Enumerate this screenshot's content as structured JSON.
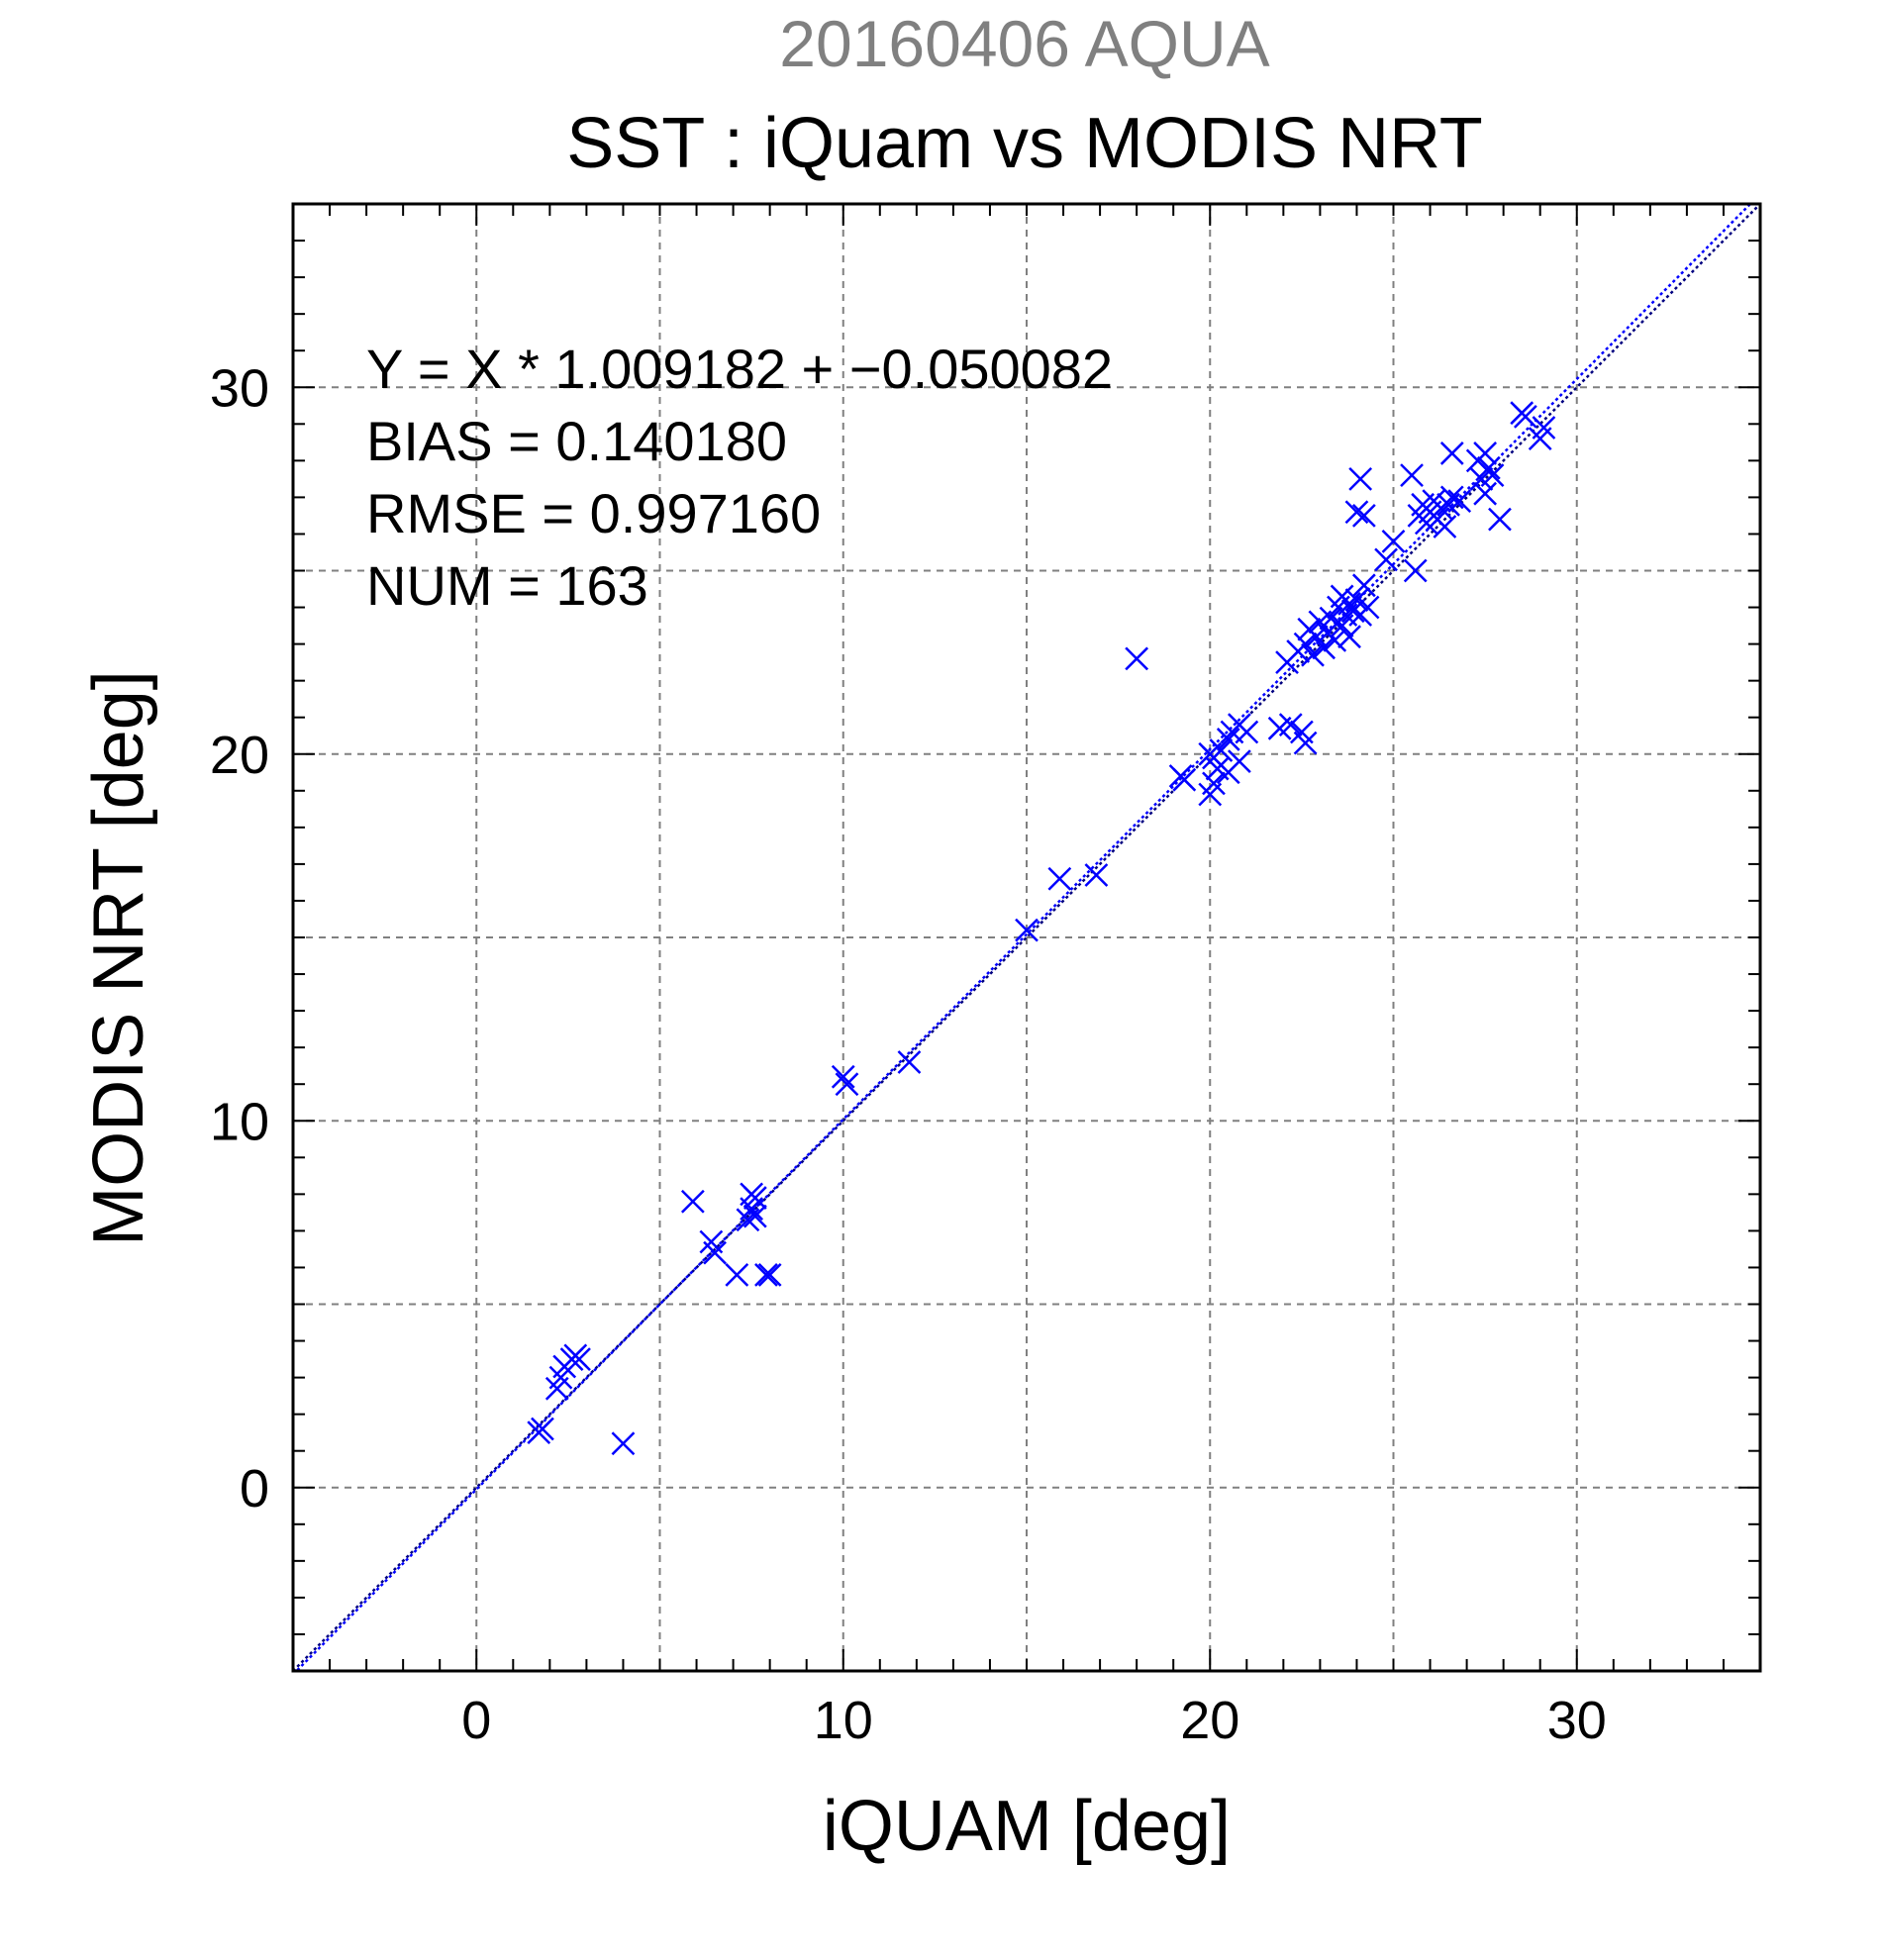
{
  "chart_data": {
    "type": "scatter",
    "title": "20160406 AQUA",
    "subtitle": "SST : iQuam vs MODIS NRT",
    "xlabel": "iQUAM [deg]",
    "ylabel": "MODIS NRT [deg]",
    "xlim": [
      -5,
      35
    ],
    "ylim": [
      -5,
      35
    ],
    "xticks": [
      0,
      10,
      20,
      30
    ],
    "yticks": [
      0,
      10,
      20,
      30
    ],
    "grid": true,
    "stats": {
      "equation": "Y = X * 1.009182 + −0.050082",
      "bias": "BIAS = 0.140180",
      "rmse": "RMSE = 0.997160",
      "num": "NUM = 163"
    },
    "fit": {
      "slope": 1.009182,
      "intercept": -0.050082
    },
    "colors": {
      "marker": "#0000ff",
      "fit_line": "#0000ff",
      "identity_line": "#000080",
      "grid": "#808080"
    },
    "series": [
      {
        "marker": "x",
        "points": [
          [
            1.7,
            1.5
          ],
          [
            1.8,
            1.6
          ],
          [
            2.2,
            2.7
          ],
          [
            2.3,
            3.0
          ],
          [
            2.4,
            3.3
          ],
          [
            2.6,
            3.5
          ],
          [
            2.8,
            3.5
          ],
          [
            2.7,
            3.6
          ],
          [
            4.0,
            1.2
          ],
          [
            5.9,
            7.8
          ],
          [
            6.4,
            6.7
          ],
          [
            6.5,
            6.4
          ],
          [
            7.1,
            5.8
          ],
          [
            7.4,
            7.3
          ],
          [
            7.5,
            7.6
          ],
          [
            7.6,
            7.4
          ],
          [
            7.5,
            8.0
          ],
          [
            7.6,
            7.9
          ],
          [
            7.9,
            5.8
          ],
          [
            8.0,
            5.8
          ],
          [
            10.0,
            11.2
          ],
          [
            10.1,
            11.0
          ],
          [
            11.8,
            11.6
          ],
          [
            15.0,
            15.2
          ],
          [
            15.9,
            16.6
          ],
          [
            16.9,
            16.7
          ],
          [
            18.0,
            22.6
          ],
          [
            19.2,
            19.4
          ],
          [
            19.3,
            19.3
          ],
          [
            20.0,
            18.9
          ],
          [
            20.1,
            19.2
          ],
          [
            20.0,
            20.0
          ],
          [
            20.1,
            19.9
          ],
          [
            20.2,
            19.6
          ],
          [
            20.3,
            20.1
          ],
          [
            20.5,
            19.5
          ],
          [
            20.5,
            20.4
          ],
          [
            20.6,
            20.6
          ],
          [
            20.8,
            19.8
          ],
          [
            20.8,
            20.8
          ],
          [
            21.0,
            20.6
          ],
          [
            21.9,
            20.7
          ],
          [
            22.2,
            20.8
          ],
          [
            22.5,
            20.6
          ],
          [
            22.6,
            20.3
          ],
          [
            22.1,
            22.5
          ],
          [
            22.4,
            22.8
          ],
          [
            22.6,
            23.0
          ],
          [
            22.7,
            23.4
          ],
          [
            22.8,
            22.7
          ],
          [
            22.9,
            23.2
          ],
          [
            23.0,
            23.6
          ],
          [
            23.1,
            22.9
          ],
          [
            23.2,
            23.3
          ],
          [
            23.3,
            23.7
          ],
          [
            23.4,
            23.1
          ],
          [
            23.5,
            24.0
          ],
          [
            23.6,
            23.5
          ],
          [
            23.6,
            24.3
          ],
          [
            23.7,
            23.8
          ],
          [
            23.8,
            23.2
          ],
          [
            23.8,
            24.1
          ],
          [
            23.9,
            23.9
          ],
          [
            24.0,
            24.2
          ],
          [
            24.1,
            23.8
          ],
          [
            24.2,
            24.6
          ],
          [
            24.3,
            24.0
          ],
          [
            24.0,
            26.6
          ],
          [
            24.1,
            27.5
          ],
          [
            24.2,
            26.5
          ],
          [
            24.8,
            25.3
          ],
          [
            25.0,
            25.8
          ],
          [
            25.5,
            27.6
          ],
          [
            25.6,
            25.0
          ],
          [
            25.7,
            26.5
          ],
          [
            25.8,
            26.8
          ],
          [
            25.9,
            26.3
          ],
          [
            26.0,
            26.6
          ],
          [
            26.1,
            26.9
          ],
          [
            26.2,
            26.4
          ],
          [
            26.3,
            26.7
          ],
          [
            26.4,
            26.2
          ],
          [
            26.5,
            26.8
          ],
          [
            26.6,
            27.0
          ],
          [
            26.6,
            28.2
          ],
          [
            26.8,
            26.9
          ],
          [
            27.3,
            28.0
          ],
          [
            27.4,
            27.5
          ],
          [
            27.5,
            27.1
          ],
          [
            27.5,
            28.2
          ],
          [
            27.6,
            27.8
          ],
          [
            27.7,
            27.6
          ],
          [
            27.9,
            26.4
          ],
          [
            28.5,
            29.3
          ],
          [
            28.6,
            29.2
          ],
          [
            29.0,
            28.6
          ],
          [
            29.1,
            28.9
          ]
        ]
      }
    ]
  }
}
